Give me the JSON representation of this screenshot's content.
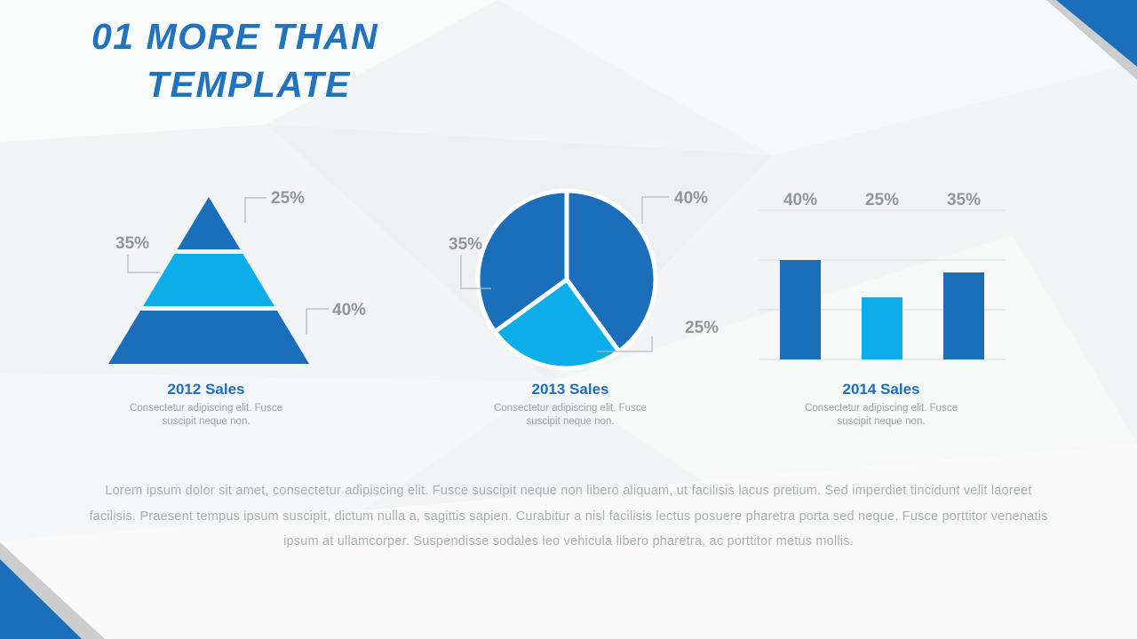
{
  "slide": {
    "title": {
      "line1": "01 MORE THAN",
      "line2": "TEMPLATE"
    },
    "body_paragraph": "Lorem ipsum dolor sit amet, consectetur adipiscing elit. Fusce suscipit neque non libero aliquam, ut facilisis lacus pretium. Sed imperdiet tincidunt velit laoreet facilisis. Praesent tempus ipsum suscipit, dictum nulla a, sagittis sapien. Curabitur a nisl facilisis lectus posuere pharetra porta sed neque. Fusce porttitor venenatis ipsum at ullamcorper. Suspendisse sodales leo vehicula libero pharetra, ac porttitor metus mollis."
  },
  "colors": {
    "dark_blue": "#1b6fba",
    "light_blue": "#0baee9",
    "title_blue": "#2273bd",
    "caption_blue": "#1a6fc0",
    "label_gray": "#8e989a",
    "corner_gray": "#cbcdce"
  },
  "chart_data": [
    {
      "type": "pyramid",
      "title": "2012 Sales",
      "subtitle": "Consectetur adipiscing elit. Fusce suscipit neque non.",
      "categories": [
        "top",
        "middle",
        "bottom"
      ],
      "values": [
        25,
        35,
        40
      ],
      "value_labels": [
        "25%",
        "35%",
        "40%"
      ],
      "segment_colors": [
        "dark_blue",
        "light_blue",
        "dark_blue"
      ],
      "legend": "none"
    },
    {
      "type": "pie",
      "title": "2013 Sales",
      "subtitle": "Consectetur adipiscing elit. Fusce suscipit neque non.",
      "categories": [
        "right",
        "bottom",
        "left"
      ],
      "values": [
        40,
        25,
        35
      ],
      "value_labels": [
        "40%",
        "25%",
        "35%"
      ],
      "slice_colors": [
        "dark_blue",
        "light_blue",
        "dark_blue"
      ],
      "start_angle_deg": 0,
      "direction": "clockwise",
      "legend": "none"
    },
    {
      "type": "bar",
      "title": "2014 Sales",
      "subtitle": "Consectetur adipiscing elit. Fusce suscipit neque non.",
      "categories": [
        "bar1",
        "bar2",
        "bar3"
      ],
      "values": [
        40,
        25,
        35
      ],
      "value_labels": [
        "40%",
        "25%",
        "35%"
      ],
      "bar_colors": [
        "dark_blue",
        "light_blue",
        "dark_blue"
      ],
      "ylim": [
        0,
        60
      ],
      "gridline_step": 20,
      "gridlines": true,
      "legend": "none"
    }
  ]
}
